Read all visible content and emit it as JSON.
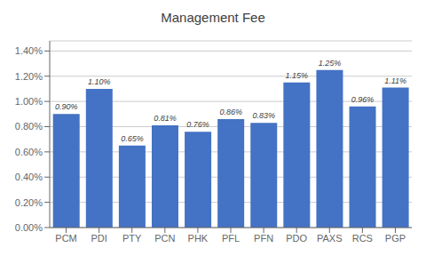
{
  "chart_data": {
    "type": "bar",
    "title": "Management Fee",
    "categories": [
      "PCM",
      "PDI",
      "PTY",
      "PCN",
      "PHK",
      "PFL",
      "PFN",
      "PDO",
      "PAXS",
      "RCS",
      "PGP"
    ],
    "values": [
      0.009,
      0.011,
      0.0065,
      0.0081,
      0.0076,
      0.0086,
      0.0083,
      0.0115,
      0.0125,
      0.0096,
      0.0111
    ],
    "value_labels": [
      "0.90%",
      "1.10%",
      "0.65%",
      "0.81%",
      "0.76%",
      "0.86%",
      "0.83%",
      "1.15%",
      "1.25%",
      "0.96%",
      "1.11%"
    ],
    "data_labels": true,
    "color": "#4472C4",
    "ylim": [
      0,
      0.0148
    ],
    "yticks": [
      {
        "value": 0.0,
        "label": "0.00%"
      },
      {
        "value": 0.002,
        "label": "0.20%"
      },
      {
        "value": 0.004,
        "label": "0.40%"
      },
      {
        "value": 0.006,
        "label": "0.60%"
      },
      {
        "value": 0.008,
        "label": "0.80%"
      },
      {
        "value": 0.01,
        "label": "1.00%"
      },
      {
        "value": 0.012,
        "label": "1.20%"
      },
      {
        "value": 0.014,
        "label": "1.40%"
      }
    ],
    "grid": true
  }
}
